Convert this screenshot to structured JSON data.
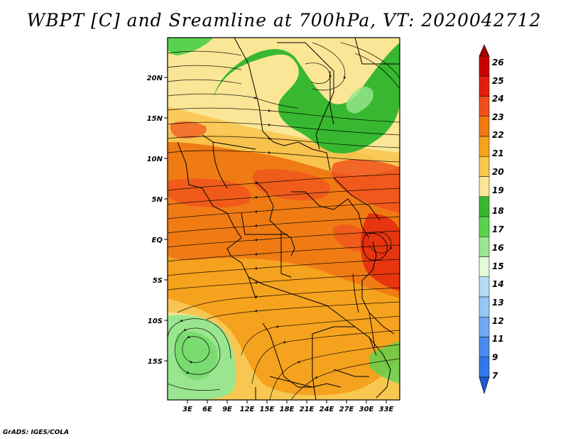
{
  "title": "WBPT [C] and Sreamline at 700hPa, VT: 2020042712",
  "credit": "GrADS: IGES/COLA",
  "map": {
    "variable": "Wet-bulb potential temperature",
    "level": "700hPa",
    "lon_labels": [
      "3E",
      "6E",
      "9E",
      "12E",
      "15E",
      "18E",
      "21E",
      "24E",
      "27E",
      "30E",
      "33E"
    ],
    "lat_labels": [
      "20N",
      "15N",
      "10N",
      "5N",
      "EQ",
      "5S",
      "10S",
      "15S"
    ]
  },
  "colorbar": {
    "labels": [
      "26",
      "25",
      "24",
      "23",
      "22",
      "21",
      "20",
      "19",
      "18",
      "17",
      "16",
      "15",
      "14",
      "13",
      "12",
      "11",
      "9",
      "7"
    ],
    "colors": [
      "#a80000",
      "#c80000",
      "#e41e0f",
      "#f0501e",
      "#f07b14",
      "#f5a21e",
      "#f8c752",
      "#fae696",
      "#38b830",
      "#5ad250",
      "#9ae690",
      "#e2fadc",
      "#b6dcf5",
      "#96c8f5",
      "#6eaaf0",
      "#4b8ceb",
      "#3278e6",
      "#1e5ad2"
    ]
  }
}
